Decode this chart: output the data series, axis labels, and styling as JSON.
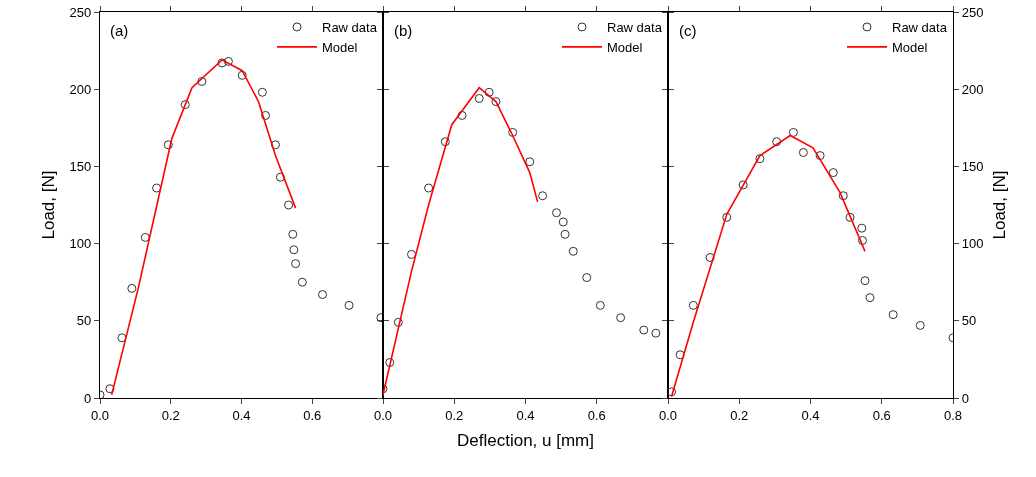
{
  "chart_data": [
    {
      "type": "scatter",
      "ylabel": "Load, [N]",
      "annotations": [
        "(a)"
      ],
      "xlim": [
        0,
        0.8
      ],
      "xticks": [
        {
          "value": 0,
          "label": "0.0"
        },
        {
          "value": 0.2,
          "label": "0.2"
        },
        {
          "value": 0.4,
          "label": "0.4"
        },
        {
          "value": 0.6,
          "label": "0.6"
        },
        {
          "value": 0.8,
          "label": null
        }
      ],
      "ylim": [
        0,
        250
      ],
      "yticks": [
        0,
        50,
        100,
        150,
        200,
        250
      ],
      "legend": "top right",
      "grid": false,
      "series": [
        {
          "name": "Raw data",
          "marker": "circle",
          "color": "#333333",
          "x": [
            0,
            0.028,
            0.062,
            0.09,
            0.128,
            0.16,
            0.193,
            0.241,
            0.288,
            0.345,
            0.363,
            0.402,
            0.459,
            0.468,
            0.496,
            0.51,
            0.533,
            0.545,
            0.548,
            0.553,
            0.572,
            0.629,
            0.704,
            0.794
          ],
          "values": [
            2,
            6,
            39,
            71,
            104,
            136,
            164,
            190,
            205,
            217,
            218,
            209,
            198,
            183,
            164,
            143,
            125,
            106,
            96,
            87,
            75,
            67,
            60,
            52
          ]
        },
        {
          "name": "Model",
          "type": "line",
          "marker": "none",
          "color": "#ff0000",
          "line_style": "solid",
          "x": [
            0.033,
            0.108,
            0.203,
            0.26,
            0.345,
            0.402,
            0.448,
            0.496,
            0.553
          ],
          "values": [
            2,
            71,
            168,
            201,
            219,
            212,
            192,
            157,
            123
          ]
        }
      ]
    },
    {
      "type": "scatter",
      "xlabel": "Deflection, u [mm]",
      "annotations": [
        "(b)"
      ],
      "xlim": [
        0,
        0.8
      ],
      "xticks": [
        {
          "value": 0,
          "label": "0.0"
        },
        {
          "value": 0.2,
          "label": "0.2"
        },
        {
          "value": 0.4,
          "label": "0.4"
        },
        {
          "value": 0.6,
          "label": "0.6"
        },
        {
          "value": 0.8,
          "label": null
        }
      ],
      "ylim": [
        0,
        250
      ],
      "yticks": [
        0,
        50,
        100,
        150,
        200,
        250
      ],
      "tick_labels": "x",
      "legend": "top right",
      "grid": false,
      "series": [
        {
          "name": "Raw data",
          "marker": "circle",
          "color": "#333333",
          "x": [
            0,
            0.019,
            0.043,
            0.08,
            0.128,
            0.175,
            0.222,
            0.27,
            0.298,
            0.317,
            0.364,
            0.412,
            0.448,
            0.487,
            0.506,
            0.511,
            0.534,
            0.572,
            0.61,
            0.667,
            0.732,
            0.766
          ],
          "values": [
            6,
            23,
            49,
            93,
            136,
            166,
            183,
            194,
            198,
            192,
            172,
            153,
            131,
            120,
            114,
            106,
            95,
            78,
            60,
            52,
            44,
            42
          ]
        },
        {
          "name": "Model",
          "type": "line",
          "marker": "none",
          "color": "#ff0000",
          "line_style": "solid",
          "x": [
            0,
            0.08,
            0.128,
            0.193,
            0.27,
            0.317,
            0.364,
            0.412,
            0.434
          ],
          "values": [
            2,
            82,
            125,
            177,
            201,
            192,
            170,
            146,
            127
          ]
        }
      ]
    },
    {
      "type": "scatter",
      "y2label": "Load, [N]",
      "annotations": [
        "(c)"
      ],
      "xlim": [
        0,
        0.8
      ],
      "xticks": [
        {
          "value": 0,
          "label": "0.0"
        },
        {
          "value": 0.2,
          "label": "0.2"
        },
        {
          "value": 0.4,
          "label": "0.4"
        },
        {
          "value": 0.6,
          "label": "0.6"
        },
        {
          "value": 0.8,
          "label": "0.8"
        }
      ],
      "y2lim": [
        0,
        250
      ],
      "y2ticks": [
        0,
        50,
        100,
        150,
        200,
        250
      ],
      "legend": "top right",
      "grid": false,
      "series": [
        {
          "name": "Raw data",
          "marker": "circle",
          "axis": "y2",
          "color": "#333333",
          "x": [
            0.01,
            0.034,
            0.071,
            0.118,
            0.165,
            0.211,
            0.258,
            0.305,
            0.352,
            0.38,
            0.427,
            0.464,
            0.492,
            0.511,
            0.544,
            0.546,
            0.553,
            0.567,
            0.632,
            0.708,
            0.8
          ],
          "values": [
            4,
            28,
            60,
            91,
            117,
            138,
            155,
            166,
            172,
            159,
            157,
            146,
            131,
            117,
            110,
            102,
            76,
            65,
            54,
            47,
            39
          ]
        },
        {
          "name": "Model",
          "type": "line",
          "marker": "none",
          "axis": "y2",
          "color": "#ff0000",
          "line_style": "solid",
          "x": [
            0.01,
            0.071,
            0.165,
            0.258,
            0.343,
            0.407,
            0.483,
            0.553
          ],
          "values": [
            1,
            49,
            119,
            157,
            170,
            162,
            133,
            95
          ]
        }
      ]
    }
  ]
}
